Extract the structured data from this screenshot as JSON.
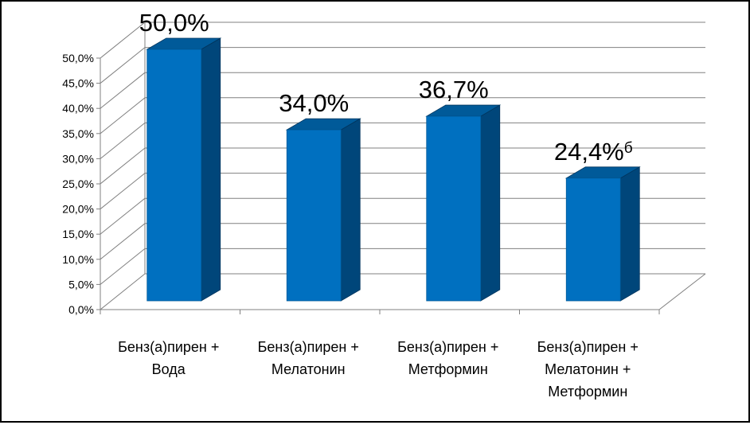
{
  "chart_data": {
    "type": "bar",
    "title": "",
    "xlabel": "",
    "ylabel": "",
    "ylim": [
      0,
      50
    ],
    "y_ticks": [
      "0,0%",
      "5,0%",
      "10,0%",
      "15,0%",
      "20,0%",
      "25,0%",
      "30,0%",
      "35,0%",
      "40,0%",
      "45,0%",
      "50,0%"
    ],
    "y_tick_values": [
      0,
      5,
      10,
      15,
      20,
      25,
      30,
      35,
      40,
      45,
      50
    ],
    "categories": [
      [
        "Бенз(а)пирен +",
        "Вода"
      ],
      [
        "Бенз(а)пирен +",
        "Мелатонин"
      ],
      [
        "Бенз(а)пирен +",
        "Метформин"
      ],
      [
        "Бенз(а)пирен +",
        "Мелатонин +",
        "Метформин"
      ]
    ],
    "values": [
      50.0,
      34.0,
      36.7,
      24.4
    ],
    "data_labels": [
      "50,0%",
      "34,0%",
      "36,7%",
      "24,4%"
    ],
    "data_label_superscripts": [
      "",
      "",
      "",
      "б"
    ],
    "grid": true,
    "style": "3d-column",
    "colors": {
      "bar_front": "#0070C0",
      "bar_side": "#00467A",
      "bar_top": "#005A99",
      "grid": "#808080"
    }
  }
}
